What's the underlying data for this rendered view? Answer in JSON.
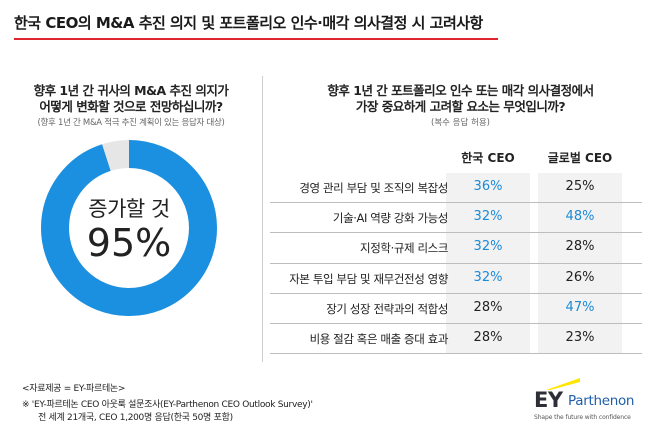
{
  "title": "한국 CEO의 M&A 추진 의지 및 포트폴리오 인수·매각 의사결정 시 고려사항",
  "colors": {
    "accent_red": "#e0262d",
    "donut_blue": "#1b8fe0",
    "highlight_blue": "#1d8ad7",
    "ey_yellow": "#ffe600"
  },
  "left_panel": {
    "question_line1": "향후 1년 간 귀사의 M&A 추진 의지가",
    "question_line2": "어떻게 변화할 것으로 전망하십니까?",
    "note": "(향후 1년 간 M&A 적극 추진 계획이 있는 응답자 대상)",
    "donut_label": "증가할 것",
    "donut_value_text": "95%"
  },
  "right_panel": {
    "question_line1": "향후 1년 간 포트폴리오 인수 또는 매각 의사결정에서",
    "question_line2": "가장 중요하게 고려할 요소는 무엇입니까?",
    "note": "(복수 응답 허용)",
    "col_korea": "한국 CEO",
    "col_global": "글로벌 CEO"
  },
  "chart_data": [
    {
      "type": "pie",
      "labels": [
        "증가할 것"
      ],
      "values": [
        95
      ],
      "unit": "%"
    },
    {
      "type": "table",
      "columns": [
        "한국 CEO",
        "글로벌 CEO"
      ],
      "rows": [
        {
          "label": "경영 관리 부담 및 조직의 복잡성",
          "korea": "36%",
          "global": "25%",
          "korea_hl": true,
          "global_hl": false
        },
        {
          "label": "기술·AI 역량 강화 가능성",
          "korea": "32%",
          "global": "48%",
          "korea_hl": true,
          "global_hl": true
        },
        {
          "label": "지정학·규제 리스크",
          "korea": "32%",
          "global": "28%",
          "korea_hl": true,
          "global_hl": false
        },
        {
          "label": "자본 투입 부담 및 재무건전성 영향",
          "korea": "32%",
          "global": "26%",
          "korea_hl": true,
          "global_hl": false
        },
        {
          "label": "장기 성장 전략과의 적합성",
          "korea": "28%",
          "global": "47%",
          "korea_hl": false,
          "global_hl": true
        },
        {
          "label": "비용 절감  혹은 매출 증대 효과",
          "korea": "28%",
          "global": "23%",
          "korea_hl": false,
          "global_hl": false
        }
      ]
    }
  ],
  "source": {
    "line1": "<자료제공 = EY-파르테논>",
    "line2": "※ 'EY-파르테논 CEO 아웃룩 설문조사(EY-Parthenon CEO Outlook Survey)'",
    "line3": "전 세계 21개국, CEO 1,200명 응답(한국 50명 포함)"
  },
  "logo": {
    "ey": "EY",
    "name": "Parthenon",
    "tagline": "Shape the future with confidence"
  }
}
